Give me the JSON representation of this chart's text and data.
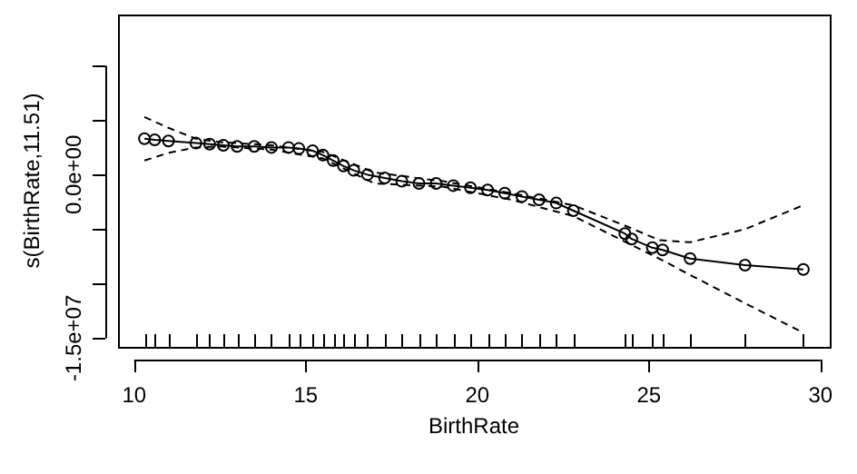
{
  "chart_data": {
    "type": "line",
    "xlabel": "BirthRate",
    "ylabel": "s(BirthRate,11.51)",
    "xlim": [
      9.53,
      30.27
    ],
    "xticks": [
      10,
      15,
      20,
      25,
      30
    ],
    "ylim": [
      -15800000,
      14700000
    ],
    "yticks": [
      {
        "value": -15000000,
        "label": "-1.5e+07"
      },
      {
        "value": -10000000,
        "label": null
      },
      {
        "value": -5000000,
        "label": null
      },
      {
        "value": 0,
        "label": "0.0e+00"
      },
      {
        "value": 5000000,
        "label": null
      },
      {
        "value": 10000000,
        "label": null
      }
    ],
    "legend": false,
    "series": [
      {
        "color": "#000000",
        "marker": "circle",
        "line_style": "solid",
        "x": [
          10.3,
          10.6,
          11.0,
          11.8,
          12.2,
          12.6,
          13.0,
          13.5,
          14.0,
          14.5,
          14.8,
          15.2,
          15.5,
          15.8,
          16.1,
          16.4,
          16.8,
          17.3,
          17.8,
          18.3,
          18.8,
          19.3,
          19.8,
          20.3,
          20.8,
          21.3,
          21.8,
          22.3,
          22.8,
          24.3,
          24.5,
          25.1,
          25.4,
          26.2,
          27.8,
          29.5
        ],
        "values": [
          3300000,
          3200000,
          3100000,
          2900000,
          2800000,
          2700000,
          2600000,
          2600000,
          2500000,
          2500000,
          2400000,
          2200000,
          1800000,
          1300000,
          800000,
          400000,
          0,
          -300000,
          -600000,
          -800000,
          -800000,
          -1000000,
          -1200000,
          -1400000,
          -1700000,
          -2000000,
          -2300000,
          -2600000,
          -3300000,
          -5400000,
          -5900000,
          -6700000,
          -6900000,
          -7700000,
          -8300000,
          -8700000
        ]
      },
      {
        "color": "#000000",
        "marker": "none",
        "line_style": "dashed",
        "x": [
          10.3,
          11.0,
          11.8,
          12.5,
          14,
          15.5,
          17,
          19,
          21,
          22.8,
          24.4,
          25.3,
          26.2,
          27.8,
          29.5
        ],
        "values": [
          5300000,
          4300000,
          3300000,
          3000000,
          2700000,
          2100000,
          200000,
          -600000,
          -1700000,
          -2800000,
          -4800000,
          -6000000,
          -6200000,
          -5000000,
          -2800000
        ]
      },
      {
        "color": "#000000",
        "marker": "none",
        "line_style": "dashed",
        "x": [
          10.3,
          11.0,
          11.8,
          12.5,
          14,
          15.5,
          17,
          19,
          21,
          22.8,
          24.4,
          25.3,
          26.2,
          27.8,
          29.5
        ],
        "values": [
          1300000,
          2000000,
          2500000,
          2600000,
          2300000,
          1500000,
          -800000,
          -1100000,
          -2300000,
          -3800000,
          -6300000,
          -7700000,
          -9200000,
          -11800000,
          -14500000
        ]
      }
    ]
  }
}
